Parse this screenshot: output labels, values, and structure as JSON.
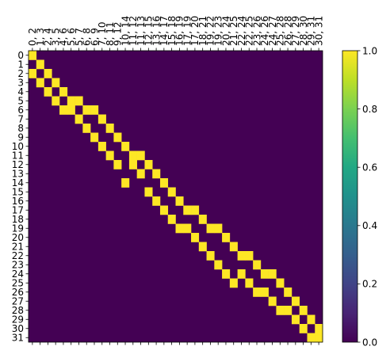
{
  "chart_data": [
    {
      "type": "heatmap",
      "title": "",
      "xlabel": "",
      "ylabel": "",
      "x_tick_position": "top",
      "x_tick_rotation": 90,
      "x_labels": [
        "0, 2",
        "1, 3",
        "2, 4",
        "3, 5",
        "4, 6",
        "5, 6",
        "5, 7",
        "6, 8",
        "6, 9",
        "7, 10",
        "8, 11",
        "9, 12",
        "10, 14",
        "11, 12",
        "11, 13",
        "12, 15",
        "13, 16",
        "14, 17",
        "15, 18",
        "16, 19",
        "17, 19",
        "17, 20",
        "18, 21",
        "19, 22",
        "19, 23",
        "20, 24",
        "21, 25",
        "22, 24",
        "22, 25",
        "23, 26",
        "24, 26",
        "24, 27",
        "25, 28",
        "26, 28",
        "27, 29",
        "28, 30",
        "29, 31",
        "30, 31"
      ],
      "y_labels": [
        "0",
        "1",
        "2",
        "3",
        "4",
        "5",
        "6",
        "7",
        "8",
        "9",
        "10",
        "11",
        "12",
        "13",
        "14",
        "15",
        "16",
        "17",
        "18",
        "19",
        "20",
        "21",
        "22",
        "23",
        "24",
        "25",
        "26",
        "27",
        "28",
        "29",
        "30",
        "31"
      ],
      "cell_values": "binary: 1 where the row index appears in the column's vertex pair, 0 elsewhere",
      "value_range": [
        0,
        1
      ],
      "colormap": "viridis",
      "low_color": "#440154",
      "high_color": "#fde725",
      "grid": false,
      "colorbar": {
        "position": "right",
        "ticks": [
          "0.0",
          "0.2",
          "0.4",
          "0.6",
          "0.8",
          "1.0"
        ],
        "tick_values": [
          0,
          0.2,
          0.4,
          0.6,
          0.8,
          1.0
        ]
      }
    }
  ]
}
